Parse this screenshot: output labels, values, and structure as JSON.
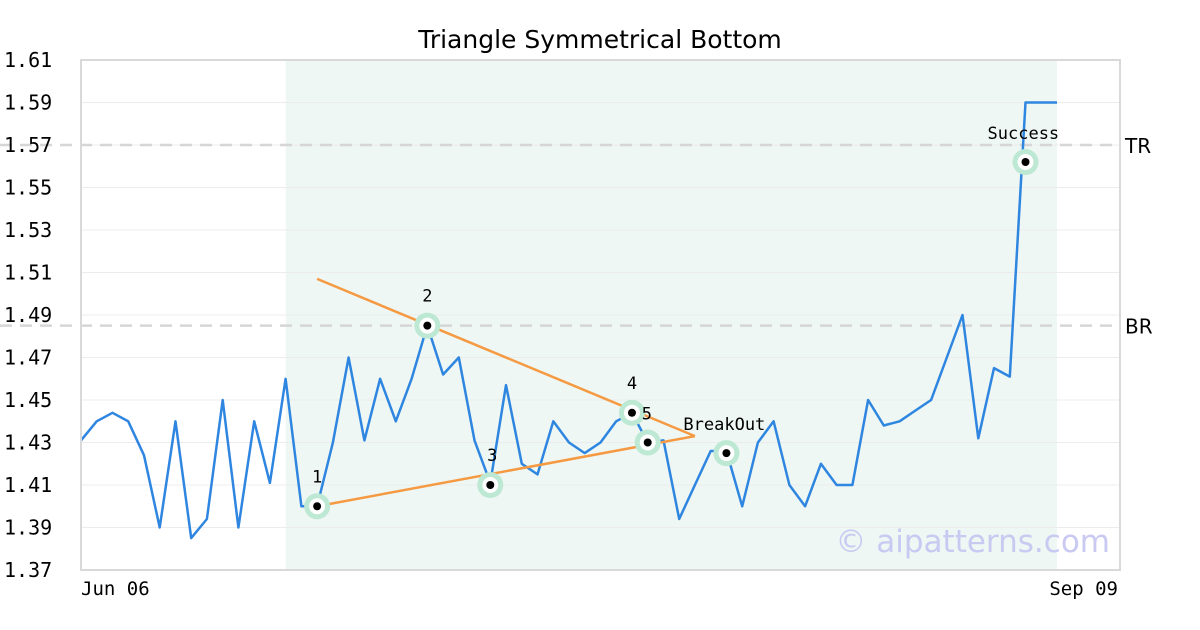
{
  "chart_data": {
    "type": "line",
    "title": "Triangle Symmetrical Bottom",
    "xlabel": "",
    "ylabel": "",
    "x_tick_labels": [
      "Jun 06",
      "Sep 09"
    ],
    "ylim": [
      1.37,
      1.61
    ],
    "y_ticks": [
      "1.37",
      "1.39",
      "1.41",
      "1.43",
      "1.45",
      "1.47",
      "1.49",
      "1.51",
      "1.53",
      "1.55",
      "1.57",
      "1.59",
      "1.61"
    ],
    "grid": "horizontal",
    "pattern_region": {
      "from_index": 13,
      "to_index": 62
    },
    "series": [
      {
        "color": "#2f86e0",
        "values": [
          1.431,
          1.44,
          1.444,
          1.44,
          1.424,
          1.39,
          1.44,
          1.385,
          1.394,
          1.45,
          1.39,
          1.44,
          1.411,
          1.46,
          1.4,
          1.4,
          1.43,
          1.47,
          1.431,
          1.46,
          1.44,
          1.46,
          1.485,
          1.462,
          1.47,
          1.431,
          1.411,
          1.457,
          1.42,
          1.415,
          1.44,
          1.43,
          1.425,
          1.43,
          1.44,
          1.444,
          1.43,
          1.431,
          1.394,
          1.41,
          1.426,
          1.426,
          1.4,
          1.43,
          1.44,
          1.41,
          1.4,
          1.42,
          1.41,
          1.41,
          1.45,
          1.438,
          1.44,
          1.445,
          1.45,
          1.47,
          1.49,
          1.432,
          1.465,
          1.461,
          1.59,
          1.59,
          1.59
        ]
      }
    ],
    "reference_lines": [
      {
        "label": "TR",
        "y": 1.57
      },
      {
        "label": "BR",
        "y": 1.485
      }
    ],
    "trendlines": [
      {
        "from": [
          15,
          1.507
        ],
        "to": [
          39,
          1.433
        ]
      },
      {
        "from": [
          15,
          1.4
        ],
        "to": [
          39,
          1.433
        ]
      }
    ],
    "annotations": [
      {
        "label": "1",
        "x": 15,
        "y": 1.4
      },
      {
        "label": "2",
        "x": 22,
        "y": 1.485
      },
      {
        "label": "3",
        "x": 26,
        "y": 1.41
      },
      {
        "label": "4",
        "x": 35,
        "y": 1.444
      },
      {
        "label": "5",
        "x": 36,
        "y": 1.43
      },
      {
        "label": "BreakOut",
        "x": 41,
        "y": 1.425
      },
      {
        "label": "Success",
        "x": 60,
        "y": 1.562
      }
    ],
    "watermark": "© aipatterns.com",
    "colors": {
      "line": "#2f86e0",
      "trendline": "#f59a42",
      "pattern_shade": "#eef7f3",
      "marker_ring": "#bde8d3",
      "reference_line": "#d6d6d6",
      "watermark": "#c9c9f2"
    }
  }
}
